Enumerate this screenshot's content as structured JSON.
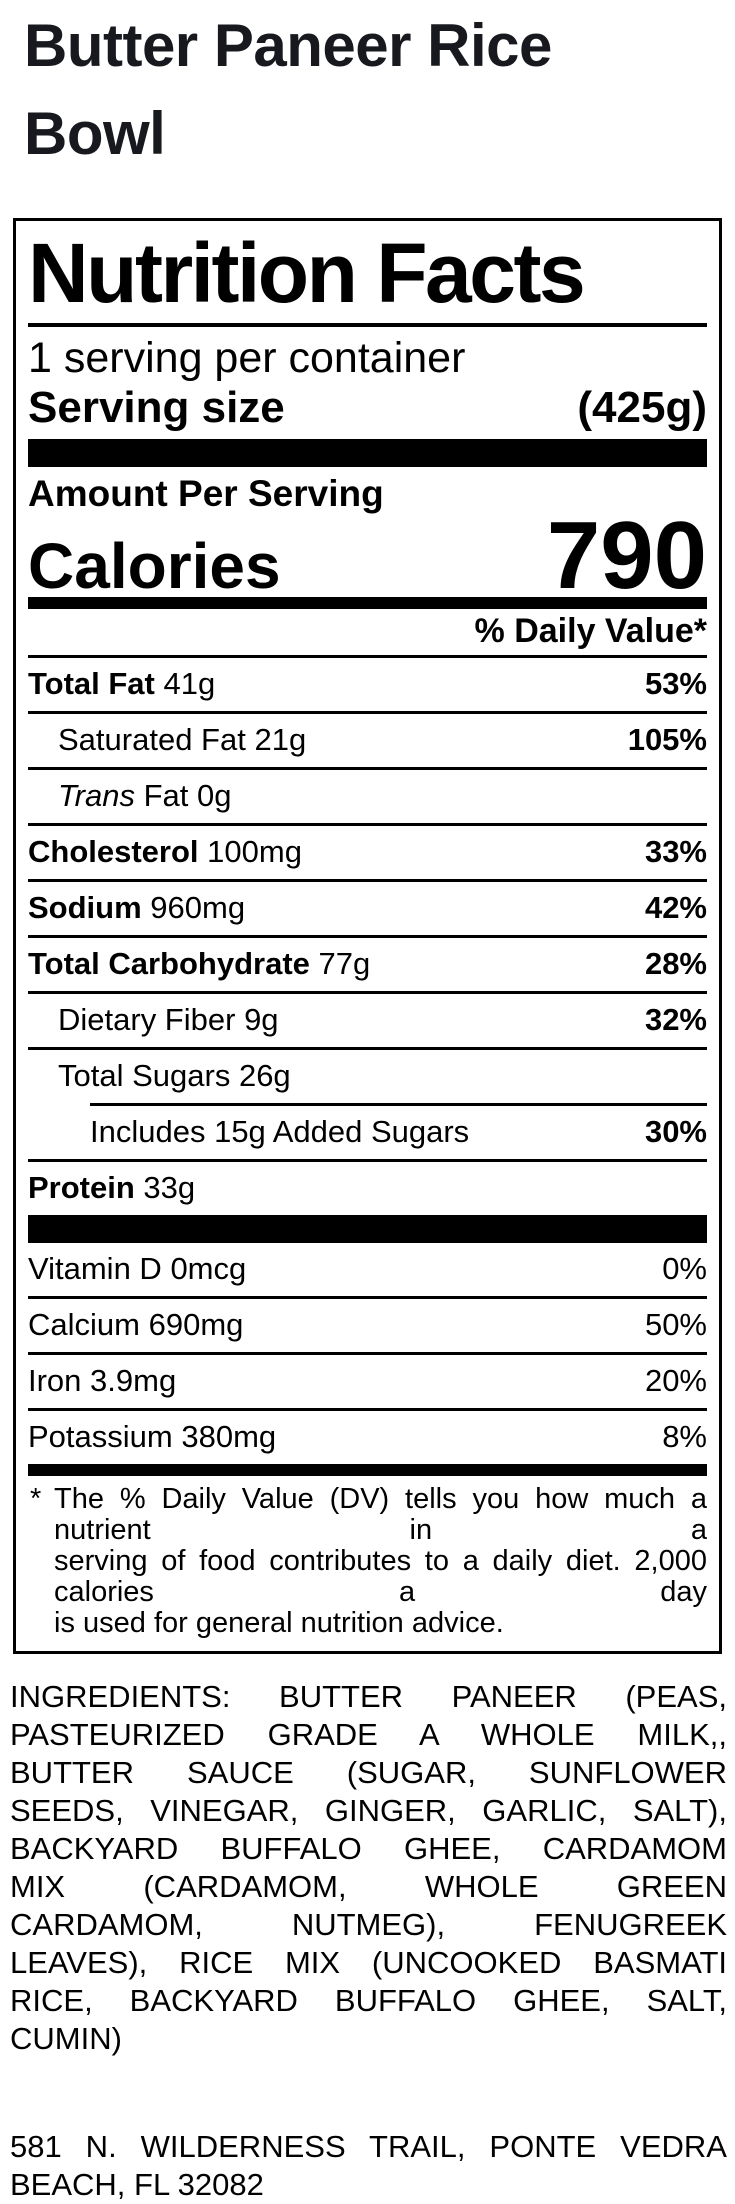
{
  "product": {
    "title": "Butter Paneer Rice Bowl"
  },
  "label": {
    "heading": "Nutrition Facts",
    "servings_per_container": "1 serving per container",
    "serving_size_label": "Serving size",
    "serving_size_value": "(425g)",
    "amount_per_serving": "Amount Per Serving",
    "calories_label": "Calories",
    "calories_value": "790",
    "daily_value_header": "% Daily Value*",
    "nutrients": [
      {
        "name": "Total Fat",
        "amount": "41g",
        "dv": "53%"
      },
      {
        "name": "Saturated Fat",
        "amount": "21g",
        "dv": "105%"
      },
      {
        "name": "Trans",
        "amount": "Fat 0g",
        "dv": ""
      },
      {
        "name": "Cholesterol",
        "amount": "100mg",
        "dv": "33%"
      },
      {
        "name": "Sodium",
        "amount": "960mg",
        "dv": "42%"
      },
      {
        "name": "Total Carbohydrate",
        "amount": "77g",
        "dv": "28%"
      },
      {
        "name": "Dietary Fiber",
        "amount": "9g",
        "dv": "32%"
      },
      {
        "name": "Total Sugars",
        "amount": "26g",
        "dv": ""
      },
      {
        "name": "Includes 15g Added Sugars",
        "amount": "",
        "dv": "30%"
      },
      {
        "name": "Protein",
        "amount": "33g",
        "dv": ""
      }
    ],
    "vitamins": [
      {
        "name": "Vitamin D",
        "amount": "0mcg",
        "dv": "0%"
      },
      {
        "name": "Calcium",
        "amount": "690mg",
        "dv": "50%"
      },
      {
        "name": "Iron",
        "amount": "3.9mg",
        "dv": "20%"
      },
      {
        "name": "Potassium",
        "amount": "380mg",
        "dv": "8%"
      }
    ],
    "footnote_marker": "*",
    "footnote_lines": [
      "The % Daily Value (DV) tells you how much a nutrient in a",
      "serving of food contributes to a daily diet. 2,000 calories a day",
      "is used for general nutrition advice."
    ]
  },
  "ingredients_lines": [
    "INGREDIENTS: BUTTER PANEER (PEAS,",
    "PASTEURIZED GRADE A WHOLE MILK,,",
    "BUTTER SAUCE (SUGAR, SUNFLOWER",
    "SEEDS, VINEGAR, GINGER, GARLIC, SALT),",
    "BACKYARD BUFFALO GHEE, CARDAMOM",
    "MIX (CARDAMOM, WHOLE GREEN",
    "CARDAMOM, NUTMEG), FENUGREEK",
    "LEAVES), RICE MIX (UNCOOKED BASMATI",
    "RICE, BACKYARD BUFFALO GHEE, SALT,",
    "CUMIN)"
  ],
  "address_lines": [
    "581 N. WILDERNESS TRAIL, PONTE VEDRA",
    "BEACH, FL 32082"
  ],
  "colors": {
    "text": "#000000",
    "title_text": "#17191e",
    "background": "#ffffff"
  }
}
